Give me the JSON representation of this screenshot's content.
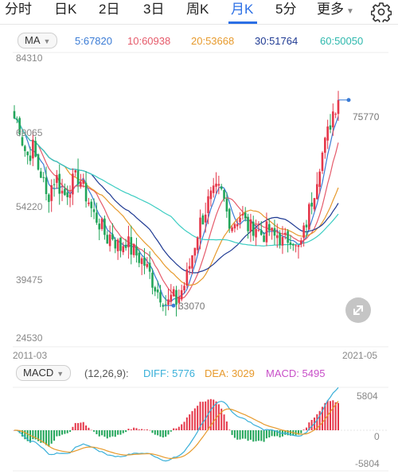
{
  "tabs": [
    "分时",
    "日K",
    "2日",
    "3日",
    "周K",
    "月K",
    "5分",
    "更多"
  ],
  "active_tab": "月K",
  "ma": {
    "selector": "MA",
    "items": [
      {
        "label": "5:67820",
        "color": "#3a7bd5"
      },
      {
        "label": "10:60938",
        "color": "#e55a6a"
      },
      {
        "label": "20:53668",
        "color": "#e79a2c"
      },
      {
        "label": "30:51764",
        "color": "#1f3a93"
      },
      {
        "label": "60:50050",
        "color": "#3ccdc2"
      }
    ]
  },
  "price_axis": [
    "84310",
    "69065",
    "54220",
    "39475",
    "24530"
  ],
  "annotations": {
    "high": "75770",
    "low": "33070"
  },
  "dates": {
    "start": "2011-03",
    "end": "2021-05"
  },
  "macd": {
    "selector": "MACD",
    "params": "(12,26,9):",
    "items": [
      {
        "label": "DIFF: 5776",
        "color": "#3ab0d9"
      },
      {
        "label": "DEA: 3029",
        "color": "#e79a2c"
      },
      {
        "label": "MACD: 5495",
        "color": "#c84fc8"
      }
    ],
    "axis": [
      "5804",
      "0",
      "-5804"
    ]
  },
  "colors": {
    "up": "#e5374a",
    "down": "#22a55a",
    "accent": "#2b6fe5"
  },
  "icons": {
    "settings": "gear-icon",
    "fullscreen": "expand-icon",
    "dropdown": "caret-down-icon"
  },
  "chart_data": {
    "type": "candlestick",
    "x_range": [
      "2011-03",
      "2021-05"
    ],
    "ylim": [
      24530,
      84310
    ],
    "yticks": [
      84310,
      69065,
      54220,
      39475,
      24530
    ],
    "price_path": [
      72000,
      71000,
      66000,
      64000,
      66000,
      62000,
      60000,
      55000,
      58000,
      60000,
      57000,
      56000,
      58000,
      59000,
      60000,
      57000,
      55000,
      52000,
      51000,
      49000,
      47000,
      48000,
      46000,
      45000,
      47000,
      45000,
      44000,
      43000,
      42000,
      40000,
      38000,
      36000,
      35000,
      33070,
      35000,
      34000,
      36000,
      38000,
      42000,
      46000,
      50000,
      52000,
      55000,
      56000,
      57000,
      56000,
      52000,
      50000,
      51000,
      52000,
      50000,
      49000,
      50000,
      48000,
      48000,
      49000,
      47000,
      48000,
      46000,
      47000,
      48000,
      44000,
      46000,
      50000,
      54000,
      58000,
      63000,
      66000,
      70000,
      74000,
      75770
    ],
    "high": 75770,
    "low": 33070,
    "ma_series": [
      {
        "name": "MA5",
        "value": 67820
      },
      {
        "name": "MA10",
        "value": 60938
      },
      {
        "name": "MA20",
        "value": 53668
      },
      {
        "name": "MA30",
        "value": 51764
      },
      {
        "name": "MA60",
        "value": 50050
      }
    ],
    "macd": {
      "diff": 5776,
      "dea": 3029,
      "macd": 5495,
      "ylim": [
        -5804,
        5804
      ]
    }
  }
}
